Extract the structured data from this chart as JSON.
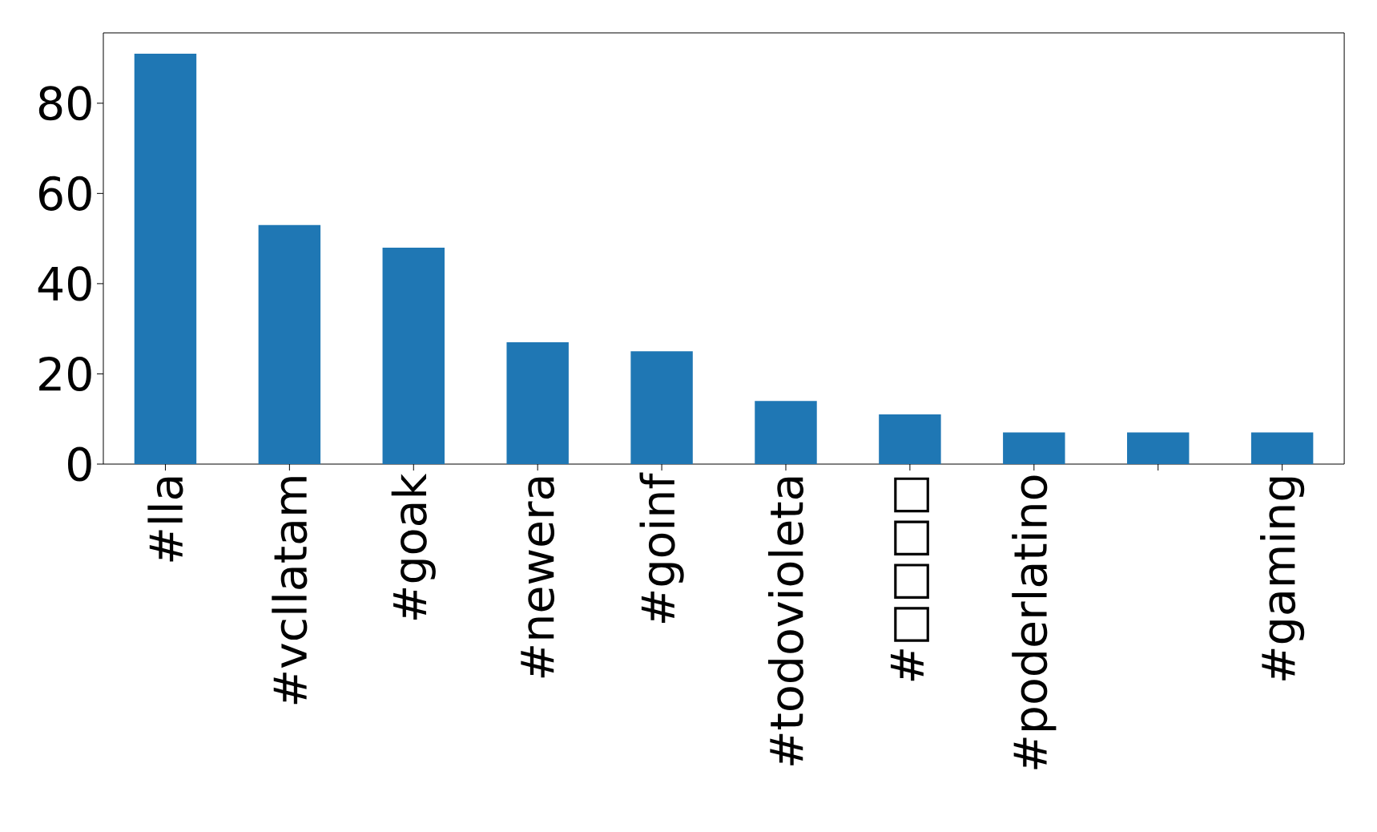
{
  "chart_data": {
    "type": "bar",
    "categories": [
      "#lla",
      "#vcllatam",
      "#goak",
      "#newera",
      "#goinf",
      "#todovioleta",
      "#□□□□",
      "#poderlatino",
      null,
      "#gaming"
    ],
    "values": [
      91,
      53,
      48,
      27,
      25,
      14,
      11,
      7,
      7,
      7
    ],
    "color": "#1f77b4",
    "ylim": [
      0,
      95.6
    ],
    "yticks": [
      0,
      20,
      40,
      60,
      80
    ]
  }
}
